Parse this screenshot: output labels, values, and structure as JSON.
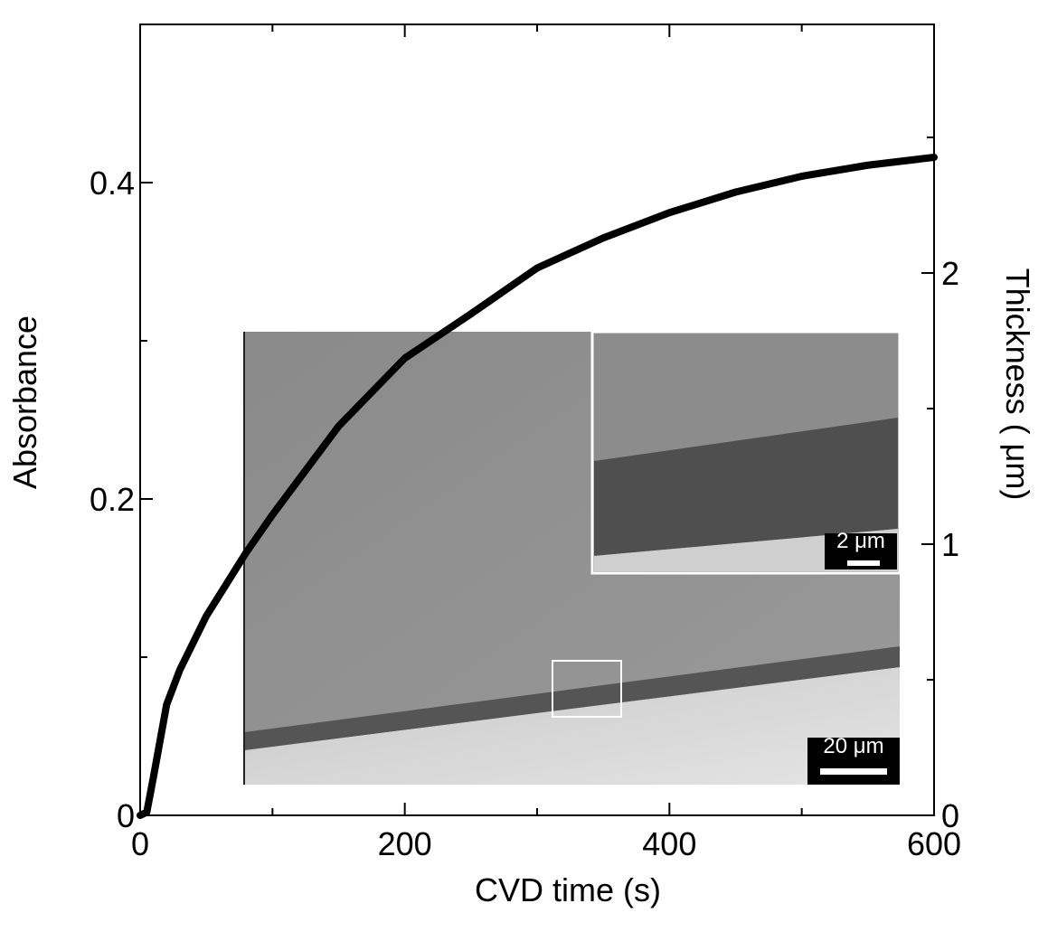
{
  "chart_data": {
    "type": "line",
    "xlabel": "CVD time (s)",
    "ylabel": "Absorbance",
    "y2label": "Thickness ( μm)",
    "xlim": [
      0,
      600
    ],
    "xticks": [
      0,
      200,
      400,
      600
    ],
    "xminorticks": [
      100,
      300,
      500
    ],
    "ylim": [
      0,
      0.5
    ],
    "yticks": [
      0,
      0.2,
      0.4
    ],
    "yminorticks": [
      0.1,
      0.3
    ],
    "y2lim": [
      0,
      2.9167
    ],
    "y2ticks": [
      0,
      1,
      2
    ],
    "y2minorticks": [
      0.5,
      1.5,
      2.5
    ],
    "x": [
      0,
      5,
      10,
      20,
      30,
      50,
      80,
      100,
      150,
      200,
      250,
      300,
      350,
      400,
      450,
      500,
      550,
      600
    ],
    "series": [
      {
        "color": "#000000",
        "values": [
          0,
          0.002,
          0.024,
          0.07,
          0.092,
          0.126,
          0.166,
          0.19,
          0.246,
          0.289,
          0.317,
          0.346,
          0.365,
          0.381,
          0.394,
          0.404,
          0.411,
          0.416
        ]
      }
    ],
    "annotations": [
      "2 μm",
      "20 μm"
    ]
  }
}
